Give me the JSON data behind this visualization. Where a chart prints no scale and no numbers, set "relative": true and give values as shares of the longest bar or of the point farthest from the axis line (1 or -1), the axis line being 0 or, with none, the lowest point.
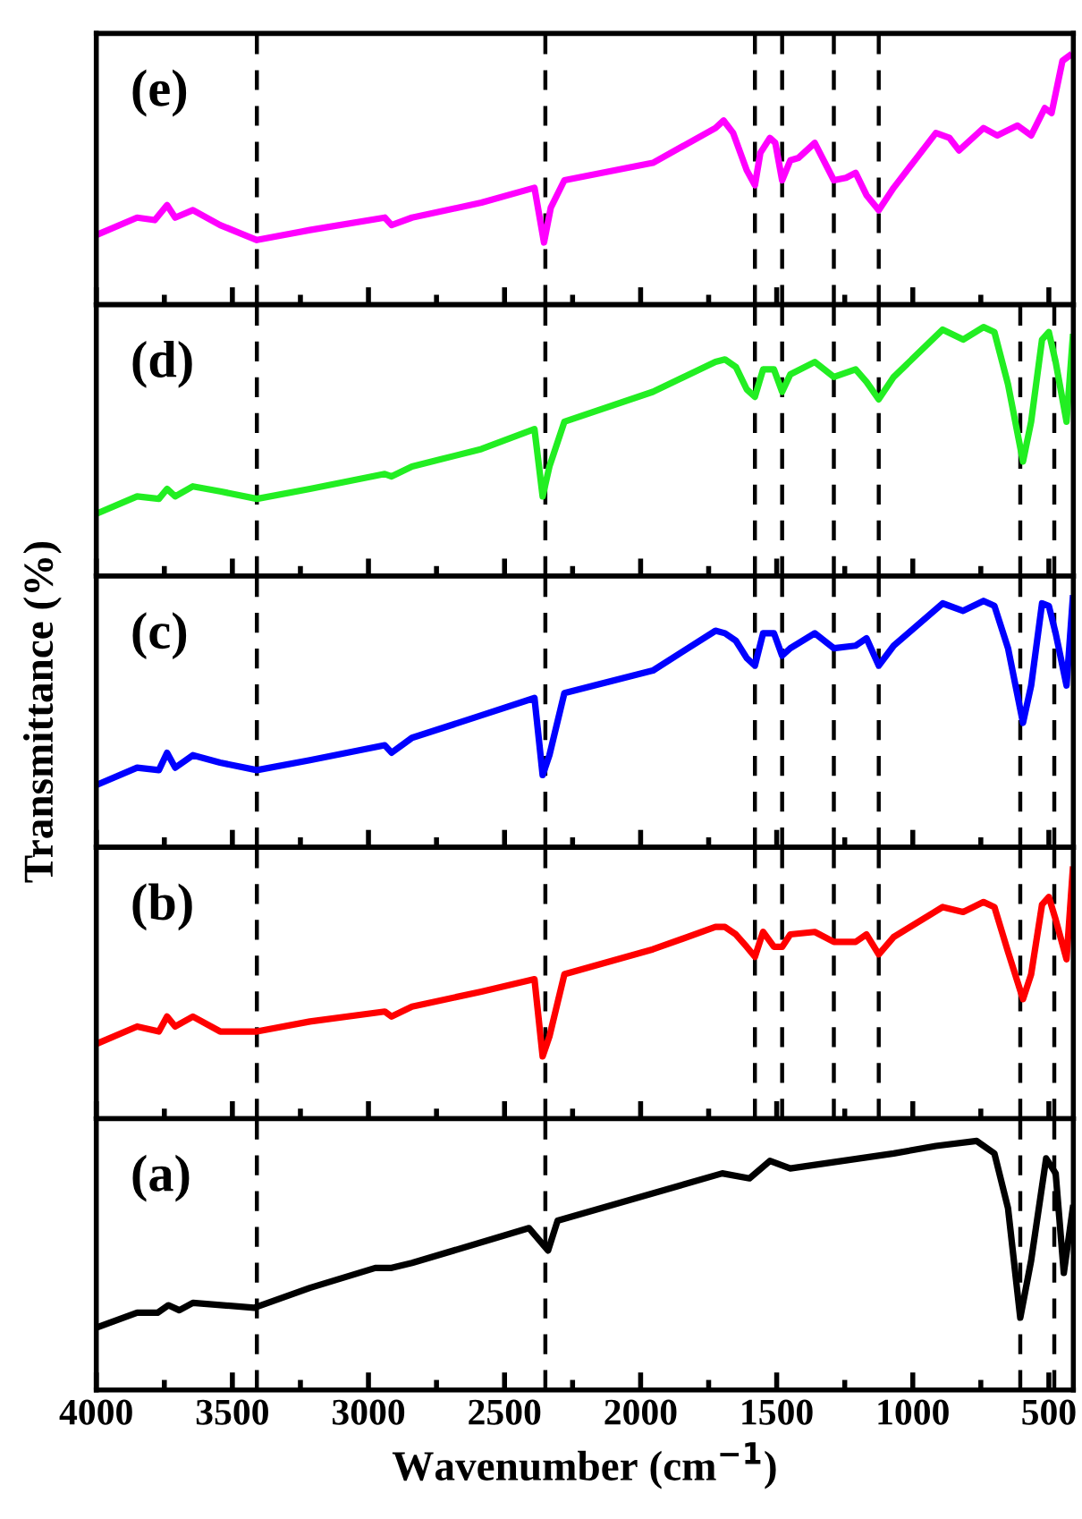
{
  "chart_data": [
    {
      "type": "line",
      "relative": true,
      "tick_labels": false,
      "legend": false,
      "grid": false,
      "annotations": [
        "(e)"
      ],
      "xlim": [
        4000,
        410
      ],
      "xticks": [
        4000,
        3500,
        3000,
        2500,
        2000,
        1500,
        1000,
        500,
        {
          "value": 3750,
          "label": null
        },
        {
          "value": 3250,
          "label": null
        },
        {
          "value": 2750,
          "label": null
        },
        {
          "value": 2250,
          "label": null
        },
        {
          "value": 1750,
          "label": null
        },
        {
          "value": 1250,
          "label": null
        },
        {
          "value": 750,
          "label": null
        }
      ],
      "ref_lines": [
        {
          "axis": "x",
          "value": 3410,
          "color": "#000000",
          "line_style": "dashed"
        },
        {
          "axis": "x",
          "value": 2350,
          "color": "#000000",
          "line_style": "dashed"
        },
        {
          "axis": "x",
          "value": 1580,
          "color": "#000000",
          "line_style": "dashed"
        },
        {
          "axis": "x",
          "value": 1480,
          "color": "#000000",
          "line_style": "dashed"
        },
        {
          "axis": "x",
          "value": 1290,
          "color": "#000000",
          "line_style": "dashed"
        },
        {
          "axis": "x",
          "value": 1125,
          "color": "#000000",
          "line_style": "dashed"
        }
      ],
      "series": [
        {
          "color": "#ff00ff",
          "x": [
            4000,
            3850,
            3785,
            3740,
            3710,
            3645,
            3545,
            3410,
            3215,
            2940,
            2915,
            2840,
            2585,
            2390,
            2355,
            2330,
            2280,
            1955,
            1725,
            1695,
            1660,
            1610,
            1580,
            1560,
            1525,
            1505,
            1480,
            1450,
            1420,
            1360,
            1290,
            1245,
            1210,
            1170,
            1125,
            1070,
            915,
            865,
            830,
            740,
            690,
            615,
            565,
            515,
            490,
            450,
            425
          ],
          "values": [
            0.28,
            0.35,
            0.34,
            0.4,
            0.35,
            0.38,
            0.32,
            0.26,
            0.3,
            0.35,
            0.32,
            0.35,
            0.41,
            0.47,
            0.25,
            0.39,
            0.5,
            0.57,
            0.71,
            0.74,
            0.69,
            0.54,
            0.48,
            0.61,
            0.67,
            0.65,
            0.5,
            0.58,
            0.59,
            0.65,
            0.5,
            0.51,
            0.53,
            0.44,
            0.38,
            0.47,
            0.69,
            0.67,
            0.62,
            0.71,
            0.68,
            0.72,
            0.68,
            0.79,
            0.77,
            0.98,
            1
          ]
        }
      ]
    },
    {
      "type": "line",
      "relative": true,
      "tick_labels": false,
      "legend": false,
      "grid": false,
      "annotations": [
        "(d)"
      ],
      "xlim": [
        4000,
        410
      ],
      "xticks": [
        4000,
        3500,
        3000,
        2500,
        2000,
        1500,
        1000,
        500,
        {
          "value": 3750,
          "label": null
        },
        {
          "value": 3250,
          "label": null
        },
        {
          "value": 2750,
          "label": null
        },
        {
          "value": 2250,
          "label": null
        },
        {
          "value": 1750,
          "label": null
        },
        {
          "value": 1250,
          "label": null
        },
        {
          "value": 750,
          "label": null
        }
      ],
      "ref_lines": [
        {
          "axis": "x",
          "value": 3410,
          "color": "#000000",
          "line_style": "dashed"
        },
        {
          "axis": "x",
          "value": 2350,
          "color": "#000000",
          "line_style": "dashed"
        },
        {
          "axis": "x",
          "value": 1580,
          "color": "#000000",
          "line_style": "dashed"
        },
        {
          "axis": "x",
          "value": 1480,
          "color": "#000000",
          "line_style": "dashed"
        },
        {
          "axis": "x",
          "value": 1290,
          "color": "#000000",
          "line_style": "dashed"
        },
        {
          "axis": "x",
          "value": 1125,
          "color": "#000000",
          "line_style": "dashed"
        },
        {
          "axis": "x",
          "value": 605,
          "color": "#000000",
          "line_style": "dashed"
        },
        {
          "axis": "x",
          "value": 480,
          "color": "#000000",
          "line_style": "dashed"
        }
      ],
      "series": [
        {
          "color": "#22ee22",
          "x": [
            4000,
            3850,
            3770,
            3740,
            3710,
            3645,
            3545,
            3410,
            3215,
            2940,
            2915,
            2840,
            2585,
            2390,
            2360,
            2335,
            2280,
            1955,
            1725,
            1690,
            1650,
            1610,
            1580,
            1550,
            1510,
            1480,
            1450,
            1360,
            1290,
            1210,
            1170,
            1125,
            1070,
            890,
            815,
            740,
            700,
            650,
            595,
            565,
            525,
            500,
            475,
            435,
            412
          ],
          "values": [
            0.25,
            0.32,
            0.31,
            0.35,
            0.32,
            0.36,
            0.34,
            0.31,
            0.35,
            0.41,
            0.4,
            0.44,
            0.51,
            0.59,
            0.32,
            0.44,
            0.62,
            0.74,
            0.86,
            0.87,
            0.84,
            0.75,
            0.72,
            0.83,
            0.83,
            0.74,
            0.81,
            0.86,
            0.8,
            0.83,
            0.78,
            0.71,
            0.8,
            0.99,
            0.95,
            1,
            0.98,
            0.77,
            0.46,
            0.62,
            0.95,
            0.98,
            0.86,
            0.62,
            0.96
          ]
        }
      ]
    },
    {
      "type": "line",
      "relative": true,
      "tick_labels": false,
      "legend": false,
      "grid": false,
      "annotations": [
        "(c)"
      ],
      "ylabel": "Transmittance (%)",
      "xlim": [
        4000,
        410
      ],
      "xticks": [
        4000,
        3500,
        3000,
        2500,
        2000,
        1500,
        1000,
        500,
        {
          "value": 3750,
          "label": null
        },
        {
          "value": 3250,
          "label": null
        },
        {
          "value": 2750,
          "label": null
        },
        {
          "value": 2250,
          "label": null
        },
        {
          "value": 1750,
          "label": null
        },
        {
          "value": 1250,
          "label": null
        },
        {
          "value": 750,
          "label": null
        }
      ],
      "ref_lines": [
        {
          "axis": "x",
          "value": 3410,
          "color": "#000000",
          "line_style": "dashed"
        },
        {
          "axis": "x",
          "value": 2350,
          "color": "#000000",
          "line_style": "dashed"
        },
        {
          "axis": "x",
          "value": 1580,
          "color": "#000000",
          "line_style": "dashed"
        },
        {
          "axis": "x",
          "value": 1480,
          "color": "#000000",
          "line_style": "dashed"
        },
        {
          "axis": "x",
          "value": 1290,
          "color": "#000000",
          "line_style": "dashed"
        },
        {
          "axis": "x",
          "value": 1125,
          "color": "#000000",
          "line_style": "dashed"
        },
        {
          "axis": "x",
          "value": 605,
          "color": "#000000",
          "line_style": "dashed"
        },
        {
          "axis": "x",
          "value": 480,
          "color": "#000000",
          "line_style": "dashed"
        }
      ],
      "series": [
        {
          "color": "#0000ff",
          "x": [
            4000,
            3850,
            3770,
            3740,
            3710,
            3645,
            3545,
            3410,
            3215,
            2940,
            2915,
            2840,
            2585,
            2390,
            2360,
            2335,
            2280,
            1955,
            1725,
            1690,
            1650,
            1610,
            1580,
            1550,
            1510,
            1480,
            1450,
            1360,
            1290,
            1210,
            1170,
            1125,
            1070,
            890,
            815,
            740,
            700,
            650,
            595,
            565,
            525,
            500,
            475,
            435,
            412
          ],
          "values": [
            0.25,
            0.32,
            0.31,
            0.38,
            0.32,
            0.37,
            0.34,
            0.31,
            0.35,
            0.41,
            0.38,
            0.44,
            0.53,
            0.6,
            0.29,
            0.37,
            0.62,
            0.71,
            0.87,
            0.86,
            0.83,
            0.76,
            0.73,
            0.86,
            0.86,
            0.77,
            0.8,
            0.86,
            0.8,
            0.81,
            0.84,
            0.73,
            0.81,
            0.98,
            0.95,
            0.99,
            0.97,
            0.8,
            0.5,
            0.65,
            0.98,
            0.97,
            0.86,
            0.65,
            1
          ]
        }
      ]
    },
    {
      "type": "line",
      "relative": true,
      "tick_labels": false,
      "legend": false,
      "grid": false,
      "annotations": [
        "(b)"
      ],
      "xlim": [
        4000,
        410
      ],
      "xticks": [
        4000,
        3500,
        3000,
        2500,
        2000,
        1500,
        1000,
        500,
        {
          "value": 3750,
          "label": null
        },
        {
          "value": 3250,
          "label": null
        },
        {
          "value": 2750,
          "label": null
        },
        {
          "value": 2250,
          "label": null
        },
        {
          "value": 1750,
          "label": null
        },
        {
          "value": 1250,
          "label": null
        },
        {
          "value": 750,
          "label": null
        }
      ],
      "ref_lines": [
        {
          "axis": "x",
          "value": 3410,
          "color": "#000000",
          "line_style": "dashed"
        },
        {
          "axis": "x",
          "value": 2350,
          "color": "#000000",
          "line_style": "dashed"
        },
        {
          "axis": "x",
          "value": 1580,
          "color": "#000000",
          "line_style": "dashed"
        },
        {
          "axis": "x",
          "value": 1480,
          "color": "#000000",
          "line_style": "dashed"
        },
        {
          "axis": "x",
          "value": 1290,
          "color": "#000000",
          "line_style": "dashed"
        },
        {
          "axis": "x",
          "value": 1125,
          "color": "#000000",
          "line_style": "dashed"
        },
        {
          "axis": "x",
          "value": 605,
          "color": "#000000",
          "line_style": "dashed"
        },
        {
          "axis": "x",
          "value": 480,
          "color": "#000000",
          "line_style": "dashed"
        }
      ],
      "series": [
        {
          "color": "#ff0000",
          "x": [
            4000,
            3850,
            3770,
            3740,
            3710,
            3645,
            3545,
            3410,
            3215,
            2940,
            2915,
            2840,
            2585,
            2390,
            2360,
            2335,
            2280,
            1955,
            1725,
            1690,
            1650,
            1610,
            1580,
            1550,
            1510,
            1480,
            1450,
            1360,
            1290,
            1210,
            1170,
            1125,
            1070,
            890,
            815,
            740,
            700,
            650,
            595,
            565,
            525,
            500,
            475,
            435,
            412
          ],
          "values": [
            0.3,
            0.37,
            0.35,
            0.41,
            0.37,
            0.41,
            0.35,
            0.35,
            0.39,
            0.43,
            0.41,
            0.45,
            0.51,
            0.56,
            0.25,
            0.33,
            0.58,
            0.68,
            0.77,
            0.77,
            0.74,
            0.69,
            0.65,
            0.75,
            0.69,
            0.69,
            0.74,
            0.75,
            0.71,
            0.71,
            0.74,
            0.66,
            0.73,
            0.85,
            0.83,
            0.87,
            0.85,
            0.67,
            0.48,
            0.58,
            0.86,
            0.89,
            0.8,
            0.64,
            1
          ]
        }
      ]
    },
    {
      "type": "line",
      "relative": true,
      "tick_labels": "x",
      "legend": false,
      "grid": false,
      "annotations": [
        "(a)"
      ],
      "xlabel": "Wavenumber (cm$^{−1}$)",
      "xlim": [
        4000,
        410
      ],
      "xticks": [
        4000,
        3500,
        3000,
        2500,
        2000,
        1500,
        1000,
        500,
        {
          "value": 3750,
          "label": null
        },
        {
          "value": 3250,
          "label": null
        },
        {
          "value": 2750,
          "label": null
        },
        {
          "value": 2250,
          "label": null
        },
        {
          "value": 1750,
          "label": null
        },
        {
          "value": 1250,
          "label": null
        },
        {
          "value": 750,
          "label": null
        }
      ],
      "ref_lines": [
        {
          "axis": "x",
          "value": 3410,
          "color": "#000000",
          "line_style": "dashed"
        },
        {
          "axis": "x",
          "value": 2350,
          "color": "#000000",
          "line_style": "dashed"
        },
        {
          "axis": "x",
          "value": 605,
          "color": "#000000",
          "line_style": "dashed"
        },
        {
          "axis": "x",
          "value": 480,
          "color": "#000000",
          "line_style": "dashed"
        }
      ],
      "series": [
        {
          "color": "#000000",
          "x": [
            4000,
            3850,
            3775,
            3735,
            3695,
            3645,
            3420,
            3215,
            2975,
            2915,
            2840,
            2410,
            2340,
            2305,
            1700,
            1600,
            1525,
            1450,
            1070,
            915,
            765,
            700,
            650,
            605,
            565,
            510,
            475,
            445,
            412
          ],
          "values": [
            0.25,
            0.31,
            0.31,
            0.34,
            0.32,
            0.35,
            0.33,
            0.41,
            0.49,
            0.49,
            0.51,
            0.65,
            0.56,
            0.68,
            0.87,
            0.85,
            0.92,
            0.89,
            0.95,
            0.98,
            1,
            0.95,
            0.73,
            0.29,
            0.52,
            0.93,
            0.87,
            0.47,
            0.73
          ]
        }
      ]
    }
  ]
}
